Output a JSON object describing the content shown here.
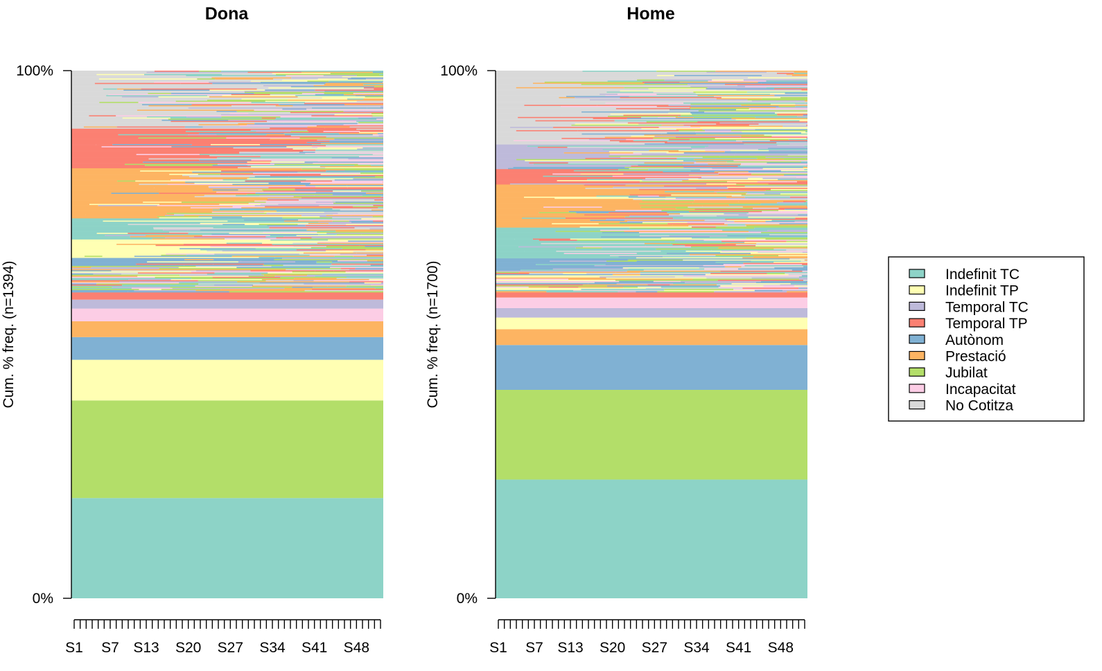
{
  "chart_data": [
    {
      "type": "area",
      "subtype": "sequence-index-plot",
      "title": "Dona",
      "ylabel": "Cum. % freq. (n=1394)",
      "y_ticks": [
        "0%",
        "100%"
      ],
      "x_tick_labels": [
        "S1",
        "S7",
        "S13",
        "S20",
        "S27",
        "S34",
        "S41",
        "S48"
      ],
      "n_periods": 52,
      "stable_blocks_bottom_up": [
        {
          "state": "Indefinit TC",
          "share": 0.19
        },
        {
          "state": "Jubilat",
          "share": 0.185
        },
        {
          "state": "Indefinit TP",
          "share": 0.077
        },
        {
          "state": "Autònom",
          "share": 0.043
        },
        {
          "state": "Prestació",
          "share": 0.03
        },
        {
          "state": "Incapacitat",
          "share": 0.024
        },
        {
          "state": "Temporal TC",
          "share": 0.017
        },
        {
          "state": "Temporal TP",
          "share": 0.014
        }
      ],
      "mixed_bands_top_down": [
        {
          "state": "No Cotitza",
          "share": 0.11
        },
        {
          "state": "Temporal TP",
          "share": 0.075
        },
        {
          "state": "Prestació",
          "share": 0.095
        },
        {
          "state": "Indefinit TC",
          "share": 0.04
        },
        {
          "state": "Indefinit TP",
          "share": 0.035
        },
        {
          "state": "Autònom",
          "share": 0.015
        },
        {
          "state": "mixed",
          "share": 0.05
        }
      ]
    },
    {
      "type": "area",
      "subtype": "sequence-index-plot",
      "title": "Home",
      "ylabel": "Cum. % freq. (n=1700)",
      "y_ticks": [
        "0%",
        "100%"
      ],
      "x_tick_labels": [
        "S1",
        "S7",
        "S13",
        "S20",
        "S27",
        "S34",
        "S41",
        "S48"
      ],
      "n_periods": 52,
      "stable_blocks_bottom_up": [
        {
          "state": "Indefinit TC",
          "share": 0.225
        },
        {
          "state": "Jubilat",
          "share": 0.17
        },
        {
          "state": "Autònom",
          "share": 0.085
        },
        {
          "state": "Prestació",
          "share": 0.03
        },
        {
          "state": "Indefinit TP",
          "share": 0.022
        },
        {
          "state": "Temporal TC",
          "share": 0.018
        },
        {
          "state": "Incapacitat",
          "share": 0.02
        },
        {
          "state": "Temporal TP",
          "share": 0.01
        }
      ],
      "mixed_bands_top_down": [
        {
          "state": "No Cotitza",
          "share": 0.12
        },
        {
          "state": "Temporal TC",
          "share": 0.04
        },
        {
          "state": "Temporal TP",
          "share": 0.025
        },
        {
          "state": "Prestació",
          "share": 0.07
        },
        {
          "state": "Indefinit TC",
          "share": 0.05
        },
        {
          "state": "Autònom",
          "share": 0.02
        },
        {
          "state": "mixed",
          "share": 0.035
        }
      ]
    }
  ],
  "legend": {
    "placement": "right",
    "entries": [
      {
        "label": "Indefinit TC",
        "color": "#8dd3c7"
      },
      {
        "label": "Indefinit TP",
        "color": "#ffffb3"
      },
      {
        "label": "Temporal TC",
        "color": "#bebada"
      },
      {
        "label": "Temporal TP",
        "color": "#fb8072"
      },
      {
        "label": "Autònom",
        "color": "#80b1d3"
      },
      {
        "label": "Prestació",
        "color": "#fdb462"
      },
      {
        "label": "Jubilat",
        "color": "#b3de69"
      },
      {
        "label": "Incapacitat",
        "color": "#fccde5"
      },
      {
        "label": "No Cotitza",
        "color": "#d9d9d9"
      }
    ]
  }
}
